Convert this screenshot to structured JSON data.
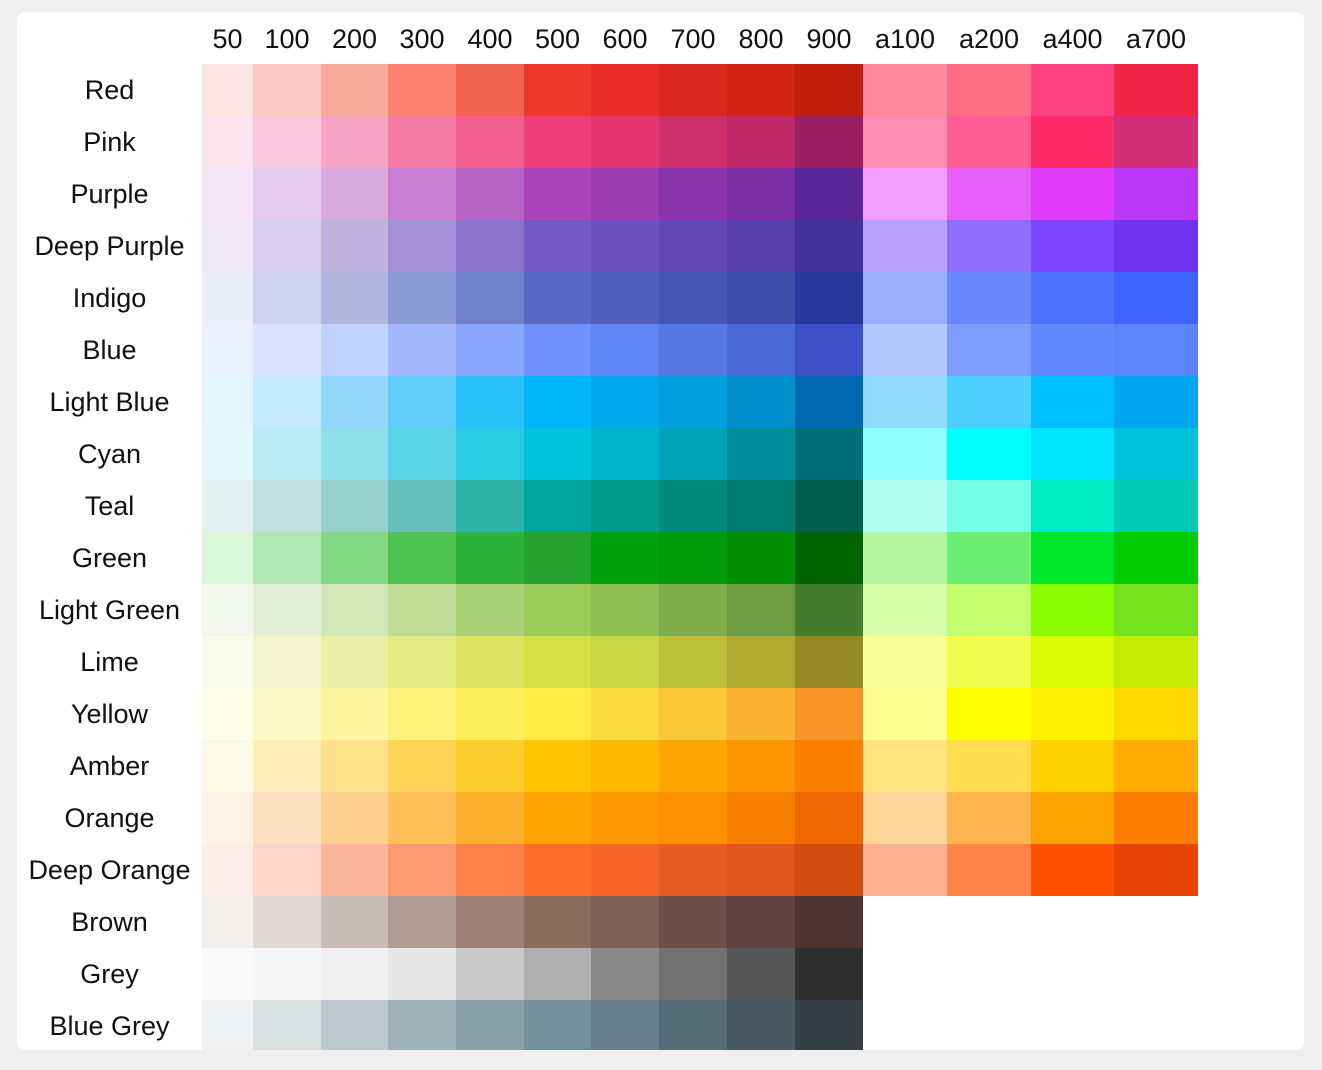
{
  "columns": [
    "50",
    "100",
    "200",
    "300",
    "400",
    "500",
    "600",
    "700",
    "800",
    "900",
    "a100",
    "a200",
    "a400",
    "a700"
  ],
  "rows": [
    {
      "name": "Red",
      "colors": [
        "#fde4e1",
        "#fcc8c3",
        "#faaa9a",
        "#f9836e",
        "#f3644f",
        "#ef392e",
        "#e72d27",
        "#da2a1f",
        "#d42416",
        "#c01e0d",
        "#ff8a9e",
        "#ff6c86",
        "#ff4081",
        "#f02445"
      ]
    },
    {
      "name": "Pink",
      "colors": [
        "#fce4ee",
        "#fbc7dc",
        "#f8a3c4",
        "#f57ba6",
        "#f15c91",
        "#f03e78",
        "#e33670",
        "#cf306a",
        "#bf2866",
        "#9d1d62",
        "#ff8db3",
        "#ff5e93",
        "#ff2a68",
        "#d42d77"
      ]
    },
    {
      "name": "Purple",
      "colors": [
        "#f6e6f8",
        "#e6cbec",
        "#d9a9df",
        "#c780d1",
        "#b762c5",
        "#ad44bb",
        "#9d3cb3",
        "#8a34ab",
        "#7a2fa3",
        "#5a2697",
        "#f19dfc",
        "#e65ffb",
        "#e03afc",
        "#bc37f8"
      ]
    },
    {
      "name": "Deep Purple",
      "colors": [
        "#eee8f6",
        "#d9cfee",
        "#c0b2e0",
        "#a48fd6",
        "#8c70c9",
        "#7858c4",
        "#6d50bd",
        "#6347b6",
        "#5740ae",
        "#42309f",
        "#baa0fc",
        "#8e6dfc",
        "#7b46fc",
        "#7034ef"
      ]
    },
    {
      "name": "Indigo",
      "colors": [
        "#ebeef8",
        "#cfd4ee",
        "#afb7e0",
        "#8c9ad3",
        "#7180ca",
        "#5869c3",
        "#4f60bb",
        "#4657b2",
        "#3d4eaa",
        "#28379b",
        "#9badfd",
        "#6b87fe",
        "#4e71fd",
        "#3e64fd"
      ]
    },
    {
      "name": "Blue",
      "colors": [
        "#eaf0fd",
        "#dae3fe",
        "#c2d2fe",
        "#a4b9fd",
        "#89a8fd",
        "#6f90fd",
        "#5e85f1",
        "#5678e4",
        "#4c6ad8",
        "#3b51c5",
        "#b4c8fe",
        "#7c9dfe",
        "#5f89fd",
        "#5d83fb"
      ]
    },
    {
      "name": "Light Blue",
      "colors": [
        "#e3f5fd",
        "#c1e8fc",
        "#93d8fb",
        "#5fccf9",
        "#29c0f8",
        "#00b6f6",
        "#00aaeb",
        "#009fde",
        "#008fcd",
        "#0069af",
        "#8fdcfd",
        "#4dcffd",
        "#00bffd",
        "#00a6ef"
      ]
    },
    {
      "name": "Cyan",
      "colors": [
        "#e2f7fa",
        "#b8eaf1",
        "#8ee0ec",
        "#5ad4e4",
        "#27cce2",
        "#00c4db",
        "#00b5cb",
        "#00a2b5",
        "#008e9c",
        "#006e76",
        "#8dfdfd",
        "#00fefe",
        "#00e4fd",
        "#00c1da"
      ]
    },
    {
      "name": "Teal",
      "colors": [
        "#e1f2f1",
        "#bde2e0",
        "#95d2cf",
        "#66bfbb",
        "#2db2aa",
        "#00a59c",
        "#009a8e",
        "#008b7f",
        "#007c70",
        "#005e50",
        "#b1fef1",
        "#73fde4",
        "#00ebc4",
        "#00c9b4"
      ]
    },
    {
      "name": "Green",
      "colors": [
        "#dbf7da",
        "#b0eab2",
        "#82d883",
        "#4dc251",
        "#2db33a",
        "#24a32e",
        "#00a210",
        "#009a0b",
        "#008f06",
        "#006400",
        "#b3f59e",
        "#6bef70",
        "#00e829",
        "#00cc00"
      ]
    },
    {
      "name": "Light Green",
      "colors": [
        "#f2f8ed",
        "#e2efd6",
        "#d2e6b6",
        "#bedc94",
        "#acd278",
        "#9ccb5a",
        "#8fbe55",
        "#7eac49",
        "#6b9c40",
        "#437d2d",
        "#d8fda7",
        "#c1fd6c",
        "#8afd00",
        "#74e21d"
      ]
    },
    {
      "name": "Lime",
      "colors": [
        "#f8fbea",
        "#f2f5cb",
        "#ebf0a9",
        "#e3ea81",
        "#dde265",
        "#d7e045",
        "#cbd441",
        "#bcbf38",
        "#aeab30",
        "#968a22",
        "#f8fd93",
        "#f1fd4d",
        "#d9fd00",
        "#c3ec00"
      ]
    },
    {
      "name": "Yellow",
      "colors": [
        "#fefde8",
        "#fef8c7",
        "#fef5a0",
        "#fef17b",
        "#feed5b",
        "#feea41",
        "#fddb3c",
        "#fcc736",
        "#fbb431",
        "#f89324",
        "#fefd8f",
        "#fefd00",
        "#fef000",
        "#fed800"
      ]
    },
    {
      "name": "Amber",
      "colors": [
        "#fef8e7",
        "#fdebb9",
        "#fde089",
        "#fed454",
        "#fecd2e",
        "#fec500",
        "#fdb800",
        "#fda700",
        "#fd9700",
        "#fd7f00",
        "#fee47f",
        "#fede4e",
        "#fed100",
        "#fead00"
      ]
    },
    {
      "name": "Orange",
      "colors": [
        "#fef3e4",
        "#fde1bf",
        "#fdd08f",
        "#febe58",
        "#feb02e",
        "#fea300",
        "#fd9a00",
        "#fa8f00",
        "#f78000",
        "#f06600",
        "#fed69a",
        "#feb54f",
        "#fea200",
        "#fe7d00"
      ]
    },
    {
      "name": "Deep Orange",
      "colors": [
        "#fdede9",
        "#fed3c9",
        "#fdb49d",
        "#fd9a72",
        "#fd8147",
        "#fe6b2a",
        "#f66526",
        "#e95c21",
        "#e2561b",
        "#d24d0e",
        "#feae92",
        "#fe8449",
        "#fe5200",
        "#ea4507"
      ]
    },
    {
      "name": "Brown",
      "colors": [
        "#f2eeec",
        "#e0d8d5",
        "#c8bbb5",
        "#af9c93",
        "#9e8076",
        "#8b6b5e",
        "#7f6056",
        "#6c5048",
        "#5e4340",
        "#4e352f"
      ]
    },
    {
      "name": "Grey",
      "colors": [
        "#fafafa",
        "#f6f6f6",
        "#f0f0f0",
        "#e6e6e6",
        "#c9c9c9",
        "#afafaf",
        "#8a8a8a",
        "#727272",
        "#575757",
        "#2e2e2e"
      ]
    },
    {
      "name": "Blue Grey",
      "colors": [
        "#eff2f5",
        "#d8dfe3",
        "#bcc9ce",
        "#a0b2b9",
        "#8aa0a8",
        "#758f9b",
        "#67808b",
        "#566c77",
        "#485963",
        "#343f46"
      ]
    }
  ]
}
